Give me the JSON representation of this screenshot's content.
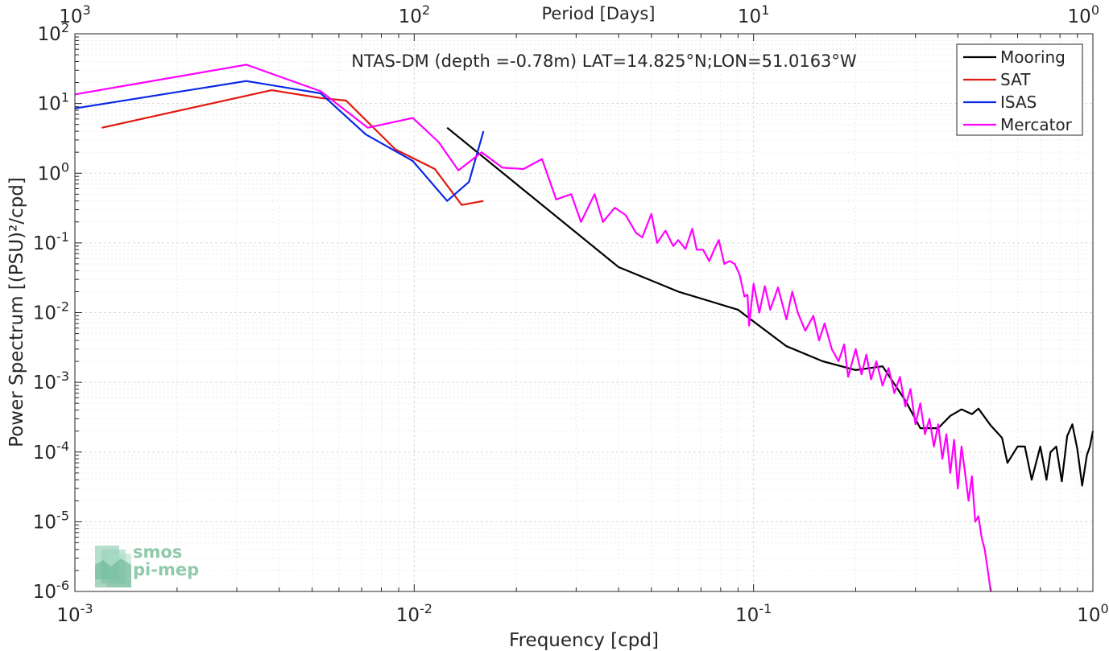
{
  "chart_data": {
    "type": "line",
    "title": "NTAS-DM (depth =-0.78m) LAT=14.825°N;LON=51.0163°W",
    "xlabel": "Frequency [cpd]",
    "ylabel": "Power Spectrum [(PSU)²/cpd]",
    "top_axis_label": "Period [Days]",
    "xscale": "log",
    "yscale": "log",
    "xlim": [
      0.001,
      1
    ],
    "ylim": [
      1e-06,
      100
    ],
    "grid": true,
    "legend_position": "top-right",
    "x_ticks": [
      {
        "value": 0.001,
        "base": "10",
        "exp": "-3"
      },
      {
        "value": 0.01,
        "base": "10",
        "exp": "-2"
      },
      {
        "value": 0.1,
        "base": "10",
        "exp": "-1"
      },
      {
        "value": 1,
        "base": "10",
        "exp": "0"
      }
    ],
    "top_ticks": [
      {
        "freq": 0.001,
        "base": "10",
        "exp": "3"
      },
      {
        "freq": 0.01,
        "base": "10",
        "exp": "2"
      },
      {
        "freq": 0.1,
        "base": "10",
        "exp": "1"
      },
      {
        "freq": 1,
        "base": "10",
        "exp": "0"
      }
    ],
    "y_ticks": [
      {
        "value": 100,
        "base": "10",
        "exp": "2"
      },
      {
        "value": 10,
        "base": "10",
        "exp": "1"
      },
      {
        "value": 1,
        "base": "10",
        "exp": "0"
      },
      {
        "value": 0.1,
        "base": "10",
        "exp": "-1"
      },
      {
        "value": 0.01,
        "base": "10",
        "exp": "-2"
      },
      {
        "value": 0.001,
        "base": "10",
        "exp": "-3"
      },
      {
        "value": 0.0001,
        "base": "10",
        "exp": "-4"
      },
      {
        "value": 1e-05,
        "base": "10",
        "exp": "-5"
      },
      {
        "value": 1e-06,
        "base": "10",
        "exp": "-6"
      }
    ],
    "series": [
      {
        "name": "Mooring",
        "color": "#000000",
        "points": [
          [
            0.0125,
            4.5
          ],
          [
            0.04,
            0.045
          ],
          [
            0.06,
            0.02
          ],
          [
            0.09,
            0.011
          ],
          [
            0.095,
            0.009
          ],
          [
            0.125,
            0.0033
          ],
          [
            0.16,
            0.002
          ],
          [
            0.2,
            0.0015
          ],
          [
            0.24,
            0.0017
          ],
          [
            0.28,
            0.00055
          ],
          [
            0.31,
            0.00022
          ],
          [
            0.35,
            0.00022
          ],
          [
            0.38,
            0.00033
          ],
          [
            0.41,
            0.00041
          ],
          [
            0.44,
            0.00035
          ],
          [
            0.46,
            0.00042
          ],
          [
            0.5,
            0.00024
          ],
          [
            0.54,
            0.00016
          ],
          [
            0.56,
            7e-05
          ],
          [
            0.6,
            0.00012
          ],
          [
            0.63,
            0.00012
          ],
          [
            0.66,
            4e-05
          ],
          [
            0.7,
            0.00012
          ],
          [
            0.73,
            4e-05
          ],
          [
            0.75,
            0.0001
          ],
          [
            0.78,
            0.00012
          ],
          [
            0.81,
            3.8e-05
          ],
          [
            0.84,
            0.00017
          ],
          [
            0.87,
            0.00025
          ],
          [
            0.9,
            0.00011
          ],
          [
            0.93,
            3.3e-05
          ],
          [
            0.96,
            9e-05
          ],
          [
            0.98,
            0.00012
          ],
          [
            1.0,
            0.0002
          ]
        ]
      },
      {
        "name": "SAT",
        "color": "#e0190f",
        "points": [
          [
            0.0012,
            4.5
          ],
          [
            0.0038,
            15.5
          ],
          [
            0.0053,
            12
          ],
          [
            0.0063,
            11
          ],
          [
            0.0088,
            2.2
          ],
          [
            0.0115,
            1.15
          ],
          [
            0.0138,
            0.35
          ],
          [
            0.016,
            0.4
          ]
        ]
      },
      {
        "name": "ISAS",
        "color": "#0a28e6",
        "points": [
          [
            0.001,
            8.5
          ],
          [
            0.0032,
            21
          ],
          [
            0.0053,
            14
          ],
          [
            0.0072,
            3.6
          ],
          [
            0.0099,
            1.5
          ],
          [
            0.0125,
            0.4
          ],
          [
            0.0145,
            0.75
          ],
          [
            0.016,
            4.0
          ]
        ]
      },
      {
        "name": "Mercator",
        "color": "#ff00ff",
        "points": [
          [
            0.001,
            13.5
          ],
          [
            0.0032,
            36
          ],
          [
            0.0053,
            15
          ],
          [
            0.0073,
            4.5
          ],
          [
            0.0099,
            6.2
          ],
          [
            0.0118,
            2.8
          ],
          [
            0.0135,
            1.1
          ],
          [
            0.0158,
            2.0
          ],
          [
            0.0182,
            1.2
          ],
          [
            0.021,
            1.15
          ],
          [
            0.0238,
            1.6
          ],
          [
            0.0262,
            0.42
          ],
          [
            0.029,
            0.5
          ],
          [
            0.031,
            0.2
          ],
          [
            0.034,
            0.5
          ],
          [
            0.036,
            0.2
          ],
          [
            0.039,
            0.32
          ],
          [
            0.042,
            0.25
          ],
          [
            0.045,
            0.14
          ],
          [
            0.047,
            0.12
          ],
          [
            0.05,
            0.26
          ],
          [
            0.052,
            0.1
          ],
          [
            0.055,
            0.15
          ],
          [
            0.058,
            0.09
          ],
          [
            0.06,
            0.11
          ],
          [
            0.063,
            0.082
          ],
          [
            0.066,
            0.16
          ],
          [
            0.068,
            0.08
          ],
          [
            0.071,
            0.08
          ],
          [
            0.074,
            0.055
          ],
          [
            0.077,
            0.085
          ],
          [
            0.079,
            0.11
          ],
          [
            0.082,
            0.05
          ],
          [
            0.085,
            0.055
          ],
          [
            0.088,
            0.05
          ],
          [
            0.091,
            0.035
          ],
          [
            0.094,
            0.017
          ],
          [
            0.096,
            0.018
          ],
          [
            0.097,
            0.0065
          ],
          [
            0.1,
            0.026
          ],
          [
            0.104,
            0.01
          ],
          [
            0.108,
            0.024
          ],
          [
            0.112,
            0.011
          ],
          [
            0.118,
            0.023
          ],
          [
            0.125,
            0.008
          ],
          [
            0.13,
            0.02
          ],
          [
            0.135,
            0.01
          ],
          [
            0.142,
            0.0055
          ],
          [
            0.15,
            0.009
          ],
          [
            0.156,
            0.004
          ],
          [
            0.162,
            0.007
          ],
          [
            0.17,
            0.003
          ],
          [
            0.178,
            0.002
          ],
          [
            0.185,
            0.0035
          ],
          [
            0.19,
            0.0012
          ],
          [
            0.2,
            0.003
          ],
          [
            0.208,
            0.0013
          ],
          [
            0.215,
            0.0025
          ],
          [
            0.222,
            0.0011
          ],
          [
            0.23,
            0.002
          ],
          [
            0.24,
            0.0009
          ],
          [
            0.25,
            0.0016
          ],
          [
            0.26,
            0.0007
          ],
          [
            0.27,
            0.0012
          ],
          [
            0.28,
            0.00045
          ],
          [
            0.29,
            0.0008
          ],
          [
            0.3,
            0.00025
          ],
          [
            0.31,
            0.0005
          ],
          [
            0.32,
            0.00018
          ],
          [
            0.33,
            0.0003
          ],
          [
            0.34,
            0.00012
          ],
          [
            0.35,
            0.00025
          ],
          [
            0.36,
            8e-05
          ],
          [
            0.37,
            0.00018
          ],
          [
            0.38,
            5e-05
          ],
          [
            0.39,
            0.00015
          ],
          [
            0.4,
            3e-05
          ],
          [
            0.41,
            0.00012
          ],
          [
            0.42,
            5e-05
          ],
          [
            0.43,
            2e-05
          ],
          [
            0.44,
            4.5e-05
          ],
          [
            0.45,
            1e-05
          ],
          [
            0.46,
            1.2e-05
          ],
          [
            0.47,
            6e-06
          ],
          [
            0.48,
            4e-06
          ],
          [
            0.49,
            2e-06
          ],
          [
            0.5,
            1e-06
          ]
        ]
      }
    ]
  }
}
